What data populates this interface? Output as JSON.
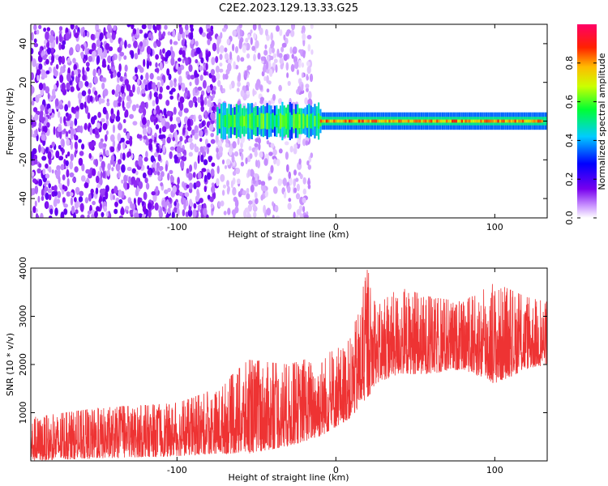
{
  "title": "C2E2.2023.129.13.33.G25",
  "chart_data": [
    {
      "type": "heatmap",
      "xlabel": "Height of straight line (km)",
      "ylabel": "Frequency (Hz)",
      "xlim": [
        -192,
        133
      ],
      "ylim": [
        -50,
        50
      ],
      "x_ticks": [
        -100,
        0,
        100
      ],
      "x_tick_labels": [
        "-100",
        "0",
        "100"
      ],
      "y_ticks": [
        -40,
        -20,
        0,
        20,
        40
      ],
      "y_tick_labels": [
        "-40",
        "-20",
        "0",
        "20",
        "40"
      ],
      "colorbar": {
        "label": "Normalized spectral amplitude",
        "range": [
          0,
          1
        ],
        "ticks": [
          0.0,
          0.2,
          0.4,
          0.6,
          0.8
        ],
        "tick_labels": [
          "0.0",
          "0.2",
          "0.4",
          "0.6",
          "0.8"
        ],
        "colormap": "rainbow (purple-blue-cyan-green-yellow-red-pink)"
      },
      "regions": [
        {
          "x_from": -192,
          "x_to": -75,
          "freq_from": -50,
          "freq_to": 50,
          "description": "noise",
          "amplitude": 0.12
        },
        {
          "x_from": -75,
          "x_to": -15,
          "freq_from": -50,
          "freq_to": 50,
          "description": "sparse noise",
          "amplitude": 0.05
        },
        {
          "x_from": -75,
          "x_to": 133,
          "freq_from": -4,
          "freq_to": 4,
          "description": "signal band near 0 Hz",
          "amplitude": 0.6
        },
        {
          "x_from": -10,
          "x_to": 130,
          "freq_from": -1,
          "freq_to": 1,
          "description": "peak core",
          "amplitude": 0.85
        }
      ]
    },
    {
      "type": "line",
      "xlabel": "Height of straight line (km)",
      "ylabel": "SNR (10 * v/v)",
      "xlim": [
        -192,
        133
      ],
      "ylim": [
        0,
        4000
      ],
      "x_ticks": [
        -100,
        0,
        100
      ],
      "x_tick_labels": [
        "-100",
        "0",
        "100"
      ],
      "y_ticks": [
        1000,
        2000,
        3000,
        4000
      ],
      "y_tick_labels": [
        "1000",
        "2000",
        "3000",
        "4000"
      ],
      "color": "#ee3333",
      "envelope": [
        {
          "x": -192,
          "low": 0,
          "high": 900
        },
        {
          "x": -150,
          "low": 50,
          "high": 1100
        },
        {
          "x": -100,
          "low": 100,
          "high": 1200
        },
        {
          "x": -75,
          "low": 150,
          "high": 1500
        },
        {
          "x": -55,
          "low": 150,
          "high": 2100
        },
        {
          "x": -30,
          "low": 300,
          "high": 2000
        },
        {
          "x": -10,
          "low": 500,
          "high": 2200
        },
        {
          "x": 0,
          "low": 700,
          "high": 2300
        },
        {
          "x": 10,
          "low": 900,
          "high": 2600
        },
        {
          "x": 20,
          "low": 1300,
          "high": 4000
        },
        {
          "x": 25,
          "low": 1600,
          "high": 3200
        },
        {
          "x": 40,
          "low": 1800,
          "high": 3600
        },
        {
          "x": 60,
          "low": 1800,
          "high": 3400
        },
        {
          "x": 80,
          "low": 1900,
          "high": 3300
        },
        {
          "x": 100,
          "low": 1600,
          "high": 3700
        },
        {
          "x": 120,
          "low": 1900,
          "high": 3400
        },
        {
          "x": 133,
          "low": 2000,
          "high": 3300
        }
      ]
    }
  ]
}
